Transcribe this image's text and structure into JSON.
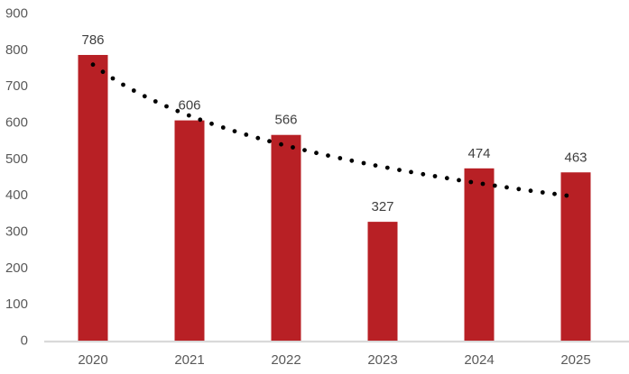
{
  "chart_data": {
    "type": "bar",
    "title": "",
    "categories": [
      "2020",
      "2021",
      "2022",
      "2023",
      "2024",
      "2025"
    ],
    "values": [
      786,
      606,
      566,
      327,
      474,
      463
    ],
    "data_labels": [
      "786",
      "606",
      "566",
      "327",
      "474",
      "463"
    ],
    "xlabel": "",
    "ylabel": "",
    "ylim": [
      0,
      900
    ],
    "y_tick_step": 100,
    "y_tick_labels": [
      "0",
      "100",
      "200",
      "300",
      "400",
      "500",
      "600",
      "700",
      "800",
      "900"
    ],
    "grid": false,
    "legend": false,
    "colors": {
      "bar": "#b82025",
      "axis_line": "#d9d9d9",
      "axis_labels": "#595959",
      "data_labels": "#404040",
      "trendline": "#000000",
      "background": "#ffffff"
    },
    "trendline": {
      "type": "logarithmic",
      "style": "dotted",
      "fit_to": "values"
    }
  }
}
